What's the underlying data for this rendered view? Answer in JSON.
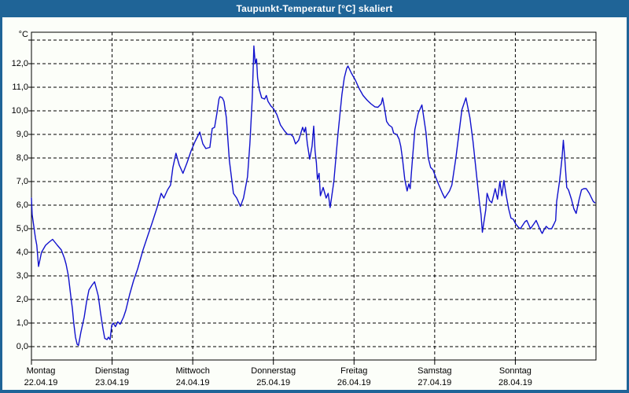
{
  "window": {
    "title": "Taupunkt-Temperatur [°C] skaliert"
  },
  "colors": {
    "frame_blue": "#1F6497",
    "background": "#FCFEF9",
    "line_blue": "#1111CD",
    "grid_black": "#000000",
    "label_black": "#000000"
  },
  "chart_data": {
    "type": "line",
    "title": "Taupunkt-Temperatur [°C] skaliert",
    "y_unit_label": "°C",
    "ylabel": "",
    "xlabel": "",
    "grid": "dashed",
    "legend": "none",
    "ylim": [
      -0.57,
      13.33
    ],
    "y_gridline_values": [
      0,
      1,
      2,
      3,
      4,
      5,
      6,
      7,
      8,
      9,
      10,
      11,
      12,
      13
    ],
    "y_tick_labels": [
      {
        "value": 12,
        "label": "12,0"
      },
      {
        "value": 11,
        "label": "11,0"
      },
      {
        "value": 10,
        "label": "10,0"
      },
      {
        "value": 9,
        "label": "9,0"
      },
      {
        "value": 8,
        "label": "8,0"
      },
      {
        "value": 7,
        "label": "7,0"
      },
      {
        "value": 6,
        "label": "6,0"
      },
      {
        "value": 5,
        "label": "5,0"
      },
      {
        "value": 4,
        "label": "4,0"
      },
      {
        "value": 3,
        "label": "3,0"
      },
      {
        "value": 2,
        "label": "2,0"
      },
      {
        "value": 1,
        "label": "1,0"
      },
      {
        "value": 0,
        "label": "0,0"
      }
    ],
    "x_hours_range": [
      0,
      168
    ],
    "x_ticks": [
      {
        "hour": 0,
        "day": "Montag",
        "date": "22.04.19"
      },
      {
        "hour": 24,
        "day": "Dienstag",
        "date": "23.04.19"
      },
      {
        "hour": 48,
        "day": "Mittwoch",
        "date": "24.04.19"
      },
      {
        "hour": 72,
        "day": "Donnerstag",
        "date": "25.04.19"
      },
      {
        "hour": 96,
        "day": "Freitag",
        "date": "26.04.19"
      },
      {
        "hour": 120,
        "day": "Samstag",
        "date": "27.04.19"
      },
      {
        "hour": 144,
        "day": "Sonntag",
        "date": "28.04.19"
      }
    ],
    "series": [
      {
        "name": "Taupunkt-Temperatur",
        "color": "#1111CD",
        "points": [
          [
            0,
            6.3
          ],
          [
            0.2,
            5.6
          ],
          [
            1.2,
            4.6
          ],
          [
            1.6,
            4.3
          ],
          [
            2.1,
            3.4
          ],
          [
            3,
            4
          ],
          [
            4.2,
            4.3
          ],
          [
            5.4,
            4.45
          ],
          [
            6.3,
            4.55
          ],
          [
            7.7,
            4.3
          ],
          [
            8.9,
            4.1
          ],
          [
            9.8,
            3.75
          ],
          [
            10.3,
            3.5
          ],
          [
            11,
            3
          ],
          [
            11.7,
            2.15
          ],
          [
            12.2,
            1.6
          ],
          [
            12.6,
            1
          ],
          [
            13.1,
            0.4
          ],
          [
            13.6,
            0.1
          ],
          [
            14,
            0.05
          ],
          [
            14.7,
            0.6
          ],
          [
            15.7,
            1.25
          ],
          [
            16.4,
            1.9
          ],
          [
            17.1,
            2.4
          ],
          [
            18,
            2.6
          ],
          [
            18.8,
            2.75
          ],
          [
            19.9,
            2.15
          ],
          [
            20.6,
            1.4
          ],
          [
            21.3,
            0.75
          ],
          [
            21.8,
            0.35
          ],
          [
            22.5,
            0.3
          ],
          [
            22.9,
            0.4
          ],
          [
            23.4,
            0.3
          ],
          [
            23.9,
            0.9
          ],
          [
            24.3,
            1
          ],
          [
            25,
            0.85
          ],
          [
            25.7,
            1.05
          ],
          [
            26.4,
            0.95
          ],
          [
            27.4,
            1.25
          ],
          [
            28.1,
            1.55
          ],
          [
            29.2,
            2.2
          ],
          [
            30.4,
            2.8
          ],
          [
            31.6,
            3.3
          ],
          [
            33.2,
            4.1
          ],
          [
            34.6,
            4.7
          ],
          [
            35.8,
            5.2
          ],
          [
            37.4,
            5.9
          ],
          [
            38.6,
            6.5
          ],
          [
            39.4,
            6.3
          ],
          [
            40.5,
            6.65
          ],
          [
            41.4,
            6.85
          ],
          [
            42.1,
            7.6
          ],
          [
            43,
            8.2
          ],
          [
            44,
            7.7
          ],
          [
            45.1,
            7.35
          ],
          [
            46.3,
            7.8
          ],
          [
            47.5,
            8.3
          ],
          [
            48.7,
            8.7
          ],
          [
            50.1,
            9.1
          ],
          [
            51,
            8.6
          ],
          [
            51.9,
            8.4
          ],
          [
            53.1,
            8.45
          ],
          [
            53.8,
            9.25
          ],
          [
            54.5,
            9.3
          ],
          [
            55.2,
            9.9
          ],
          [
            55.8,
            10.5
          ],
          [
            56.1,
            10.6
          ],
          [
            56.8,
            10.55
          ],
          [
            57.3,
            10.4
          ],
          [
            58,
            9.7
          ],
          [
            58.9,
            7.9
          ],
          [
            60.1,
            6.5
          ],
          [
            61.1,
            6.3
          ],
          [
            62.2,
            5.95
          ],
          [
            63.1,
            6.3
          ],
          [
            64.3,
            7.2
          ],
          [
            65,
            8.6
          ],
          [
            65.7,
            10.5
          ],
          [
            66.2,
            12.75
          ],
          [
            66.6,
            12
          ],
          [
            67,
            12.2
          ],
          [
            67.3,
            11.4
          ],
          [
            67.8,
            10.9
          ],
          [
            68.5,
            10.55
          ],
          [
            69.4,
            10.5
          ],
          [
            69.9,
            10.65
          ],
          [
            70.4,
            10.4
          ],
          [
            71.3,
            10.2
          ],
          [
            72,
            10.1
          ],
          [
            73,
            9.85
          ],
          [
            74.1,
            9.4
          ],
          [
            75.3,
            9.15
          ],
          [
            76.2,
            9
          ],
          [
            77.2,
            9
          ],
          [
            77.9,
            8.9
          ],
          [
            78.6,
            8.6
          ],
          [
            79.5,
            8.75
          ],
          [
            80.7,
            9.3
          ],
          [
            81.2,
            9.1
          ],
          [
            81.6,
            9.3
          ],
          [
            82.1,
            8.6
          ],
          [
            82.8,
            7.95
          ],
          [
            83.5,
            8.5
          ],
          [
            84,
            9.35
          ],
          [
            84.4,
            8.3
          ],
          [
            84.8,
            7.8
          ],
          [
            85.1,
            7.1
          ],
          [
            85.6,
            7.35
          ],
          [
            86,
            6.4
          ],
          [
            86.8,
            6.75
          ],
          [
            87.7,
            6.3
          ],
          [
            88.3,
            6.5
          ],
          [
            88.9,
            5.9
          ],
          [
            90,
            7
          ],
          [
            91.2,
            9
          ],
          [
            92.4,
            10.7
          ],
          [
            93.1,
            11.4
          ],
          [
            93.8,
            11.8
          ],
          [
            94.2,
            11.9
          ],
          [
            95.2,
            11.6
          ],
          [
            96.4,
            11.3
          ],
          [
            97.5,
            10.95
          ],
          [
            98.7,
            10.65
          ],
          [
            99.9,
            10.45
          ],
          [
            101,
            10.3
          ],
          [
            102.2,
            10.17
          ],
          [
            103.1,
            10.15
          ],
          [
            104.1,
            10.3
          ],
          [
            104.5,
            10.55
          ],
          [
            105.2,
            10
          ],
          [
            105.7,
            9.55
          ],
          [
            106.4,
            9.4
          ],
          [
            107.3,
            9.3
          ],
          [
            107.8,
            9.05
          ],
          [
            108.7,
            9
          ],
          [
            109.4,
            8.8
          ],
          [
            109.9,
            8.5
          ],
          [
            110.4,
            8
          ],
          [
            111.1,
            7.1
          ],
          [
            111.8,
            6.6
          ],
          [
            112.3,
            6.9
          ],
          [
            112.7,
            6.7
          ],
          [
            113.4,
            8
          ],
          [
            114.1,
            9.2
          ],
          [
            115.1,
            9.9
          ],
          [
            116.2,
            10.25
          ],
          [
            117.4,
            9.1
          ],
          [
            118.1,
            8
          ],
          [
            118.8,
            7.6
          ],
          [
            119.5,
            7.5
          ],
          [
            120.4,
            7.15
          ],
          [
            121.1,
            6.9
          ],
          [
            122.3,
            6.5
          ],
          [
            123,
            6.3
          ],
          [
            124.4,
            6.6
          ],
          [
            125.1,
            6.85
          ],
          [
            126.3,
            8
          ],
          [
            127.4,
            9.25
          ],
          [
            128.1,
            10.05
          ],
          [
            129.3,
            10.55
          ],
          [
            130.5,
            9.7
          ],
          [
            131.4,
            8.7
          ],
          [
            132.1,
            7.75
          ],
          [
            132.8,
            6.8
          ],
          [
            133.3,
            6.15
          ],
          [
            133.8,
            5.6
          ],
          [
            134.2,
            4.85
          ],
          [
            135.2,
            5.8
          ],
          [
            135.6,
            6.5
          ],
          [
            136.3,
            6.2
          ],
          [
            137,
            6.1
          ],
          [
            138,
            6.7
          ],
          [
            138.7,
            6.25
          ],
          [
            139.4,
            7
          ],
          [
            140,
            6.4
          ],
          [
            140.6,
            7.05
          ],
          [
            141.3,
            6.4
          ],
          [
            142,
            5.85
          ],
          [
            142.7,
            5.45
          ],
          [
            143.4,
            5.4
          ],
          [
            144.1,
            5.2
          ],
          [
            145,
            5.05
          ],
          [
            145.5,
            5
          ],
          [
            146.2,
            5.15
          ],
          [
            146.9,
            5.3
          ],
          [
            147.4,
            5.35
          ],
          [
            148.5,
            5
          ],
          [
            149.5,
            5.2
          ],
          [
            150.2,
            5.35
          ],
          [
            151.1,
            5.05
          ],
          [
            151.6,
            4.9
          ],
          [
            152,
            4.8
          ],
          [
            152.7,
            5
          ],
          [
            153.2,
            5.1
          ],
          [
            153.9,
            5
          ],
          [
            154.8,
            5
          ],
          [
            155.5,
            5.2
          ],
          [
            156,
            5.35
          ],
          [
            156.3,
            6.15
          ],
          [
            157.2,
            7.05
          ],
          [
            157.9,
            8
          ],
          [
            158.3,
            8.75
          ],
          [
            158.7,
            8
          ],
          [
            159.3,
            6.75
          ],
          [
            159.8,
            6.65
          ],
          [
            160.7,
            6.25
          ],
          [
            161.4,
            5.85
          ],
          [
            162.1,
            5.65
          ],
          [
            163,
            6.25
          ],
          [
            163.7,
            6.65
          ],
          [
            164.4,
            6.7
          ],
          [
            165.1,
            6.7
          ],
          [
            166,
            6.5
          ],
          [
            167.2,
            6.15
          ],
          [
            167.7,
            6.1
          ]
        ]
      }
    ]
  }
}
